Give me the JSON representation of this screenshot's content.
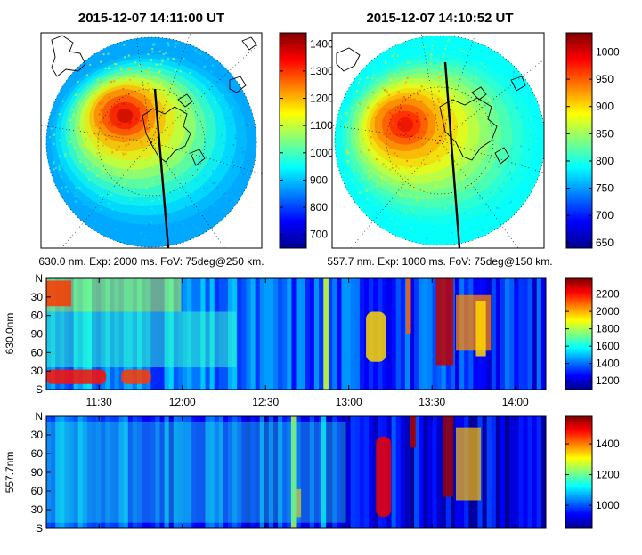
{
  "chart_data": [
    {
      "type": "heatmap",
      "panel": "allsky-630",
      "title": "2015-12-07 14:11:00 UT",
      "caption": "630.0 nm. Exp: 2000 ms. FoV: 75deg@250 km.",
      "colorbar": {
        "min": 650,
        "max": 1440,
        "ticks": [
          700,
          800,
          900,
          1000,
          1100,
          1200,
          1300,
          1400
        ]
      },
      "hotspot": {
        "value": 1400
      },
      "edge_value": 880
    },
    {
      "type": "heatmap",
      "panel": "allsky-557",
      "title": "2015-12-07 14:10:52 UT",
      "caption": "557.7 nm. Exp: 1000 ms. FoV: 75deg@150 km.",
      "colorbar": {
        "min": 640,
        "max": 1035,
        "ticks": [
          650,
          700,
          750,
          800,
          850,
          900,
          950,
          1000
        ]
      },
      "hotspot": {
        "value": 1000
      },
      "edge_value": 790
    },
    {
      "type": "heatmap",
      "panel": "keogram-630",
      "ylabel": "630.0nm",
      "y_ticks": [
        "N",
        "30",
        "60",
        "90",
        "60",
        "30",
        "S"
      ],
      "x_ticks": [
        "11:30",
        "12:00",
        "12:30",
        "13:00",
        "13:30",
        "14:00"
      ],
      "xlim": [
        "11:11",
        "14:11"
      ],
      "colorbar": {
        "min": 1100,
        "max": 2380,
        "ticks": [
          1200,
          1400,
          1600,
          1800,
          2000,
          2200
        ]
      },
      "base_value": 1450
    },
    {
      "type": "heatmap",
      "panel": "keogram-557",
      "ylabel": "557.7nm",
      "y_ticks": [
        "N",
        "30",
        "60",
        "90",
        "60",
        "30",
        "S"
      ],
      "x_ticks": [
        "11:30",
        "12:00",
        "12:30",
        "13:00",
        "13:30",
        "14:00"
      ],
      "xlim": [
        "11:11",
        "14:11"
      ],
      "colorbar": {
        "min": 850,
        "max": 1580,
        "ticks": [
          1000,
          1200,
          1400
        ]
      },
      "base_value": 1000
    }
  ]
}
